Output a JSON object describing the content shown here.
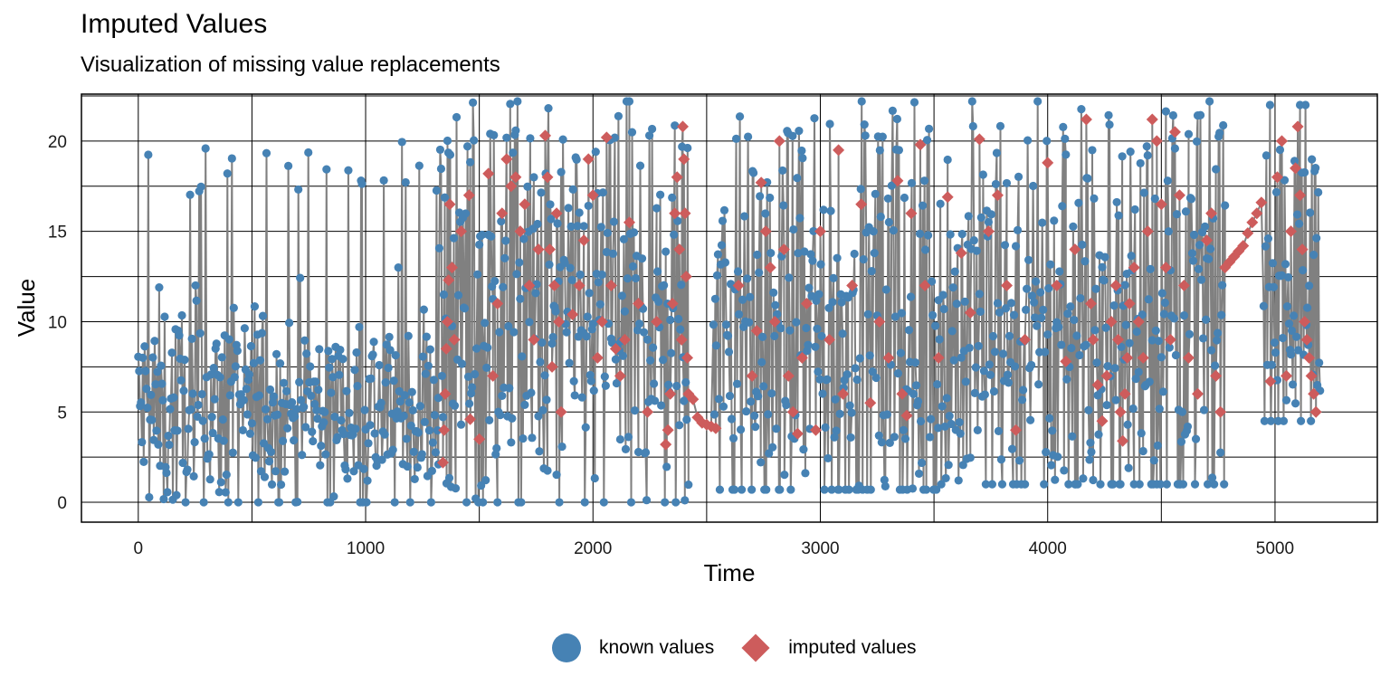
{
  "chart_data": {
    "type": "scatter",
    "title": "Imputed Values",
    "subtitle": "Visualization of missing value replacements",
    "xlabel": "Time",
    "ylabel": "Value",
    "xlim": [
      -250,
      5450
    ],
    "ylim": [
      -1.1,
      22.6
    ],
    "xticks": [
      0,
      1000,
      2000,
      3000,
      4000,
      5000
    ],
    "yticks": [
      0,
      5,
      10,
      15,
      20
    ],
    "grid": true,
    "legend_position": "bottom",
    "line_color": "#808080",
    "series": [
      {
        "name": "known values",
        "marker": "circle",
        "color": "#4682B4",
        "segments": [
          {
            "x_start": 0,
            "x_end": 1320,
            "min": 0.0,
            "max": 20.0,
            "mean": 5.0,
            "spread": 3.0
          },
          {
            "x_start": 1320,
            "x_end": 2420,
            "min": 0.0,
            "max": 22.2,
            "mean": 9.5,
            "spread": 6.0
          },
          {
            "x_start": 2530,
            "x_end": 3520,
            "min": 0.7,
            "max": 22.2,
            "mean": 8.5,
            "spread": 6.0
          },
          {
            "x_start": 3520,
            "x_end": 4780,
            "min": 1.0,
            "max": 22.2,
            "mean": 9.0,
            "spread": 6.0
          },
          {
            "x_start": 4950,
            "x_end": 5200,
            "min": 4.5,
            "max": 22.0,
            "mean": 12.0,
            "spread": 5.0
          }
        ]
      },
      {
        "name": "imputed values",
        "marker": "diamond",
        "color": "#CD5C5C",
        "points": [
          [
            1340,
            2.2
          ],
          [
            1345,
            4.0
          ],
          [
            1350,
            6.0
          ],
          [
            1355,
            8.5
          ],
          [
            1360,
            10.0
          ],
          [
            1365,
            12.3
          ],
          [
            1370,
            16.5
          ],
          [
            1380,
            13.0
          ],
          [
            1390,
            9.0
          ],
          [
            1420,
            15.0
          ],
          [
            1455,
            17.0
          ],
          [
            1460,
            4.6
          ],
          [
            1500,
            3.5
          ],
          [
            1540,
            18.2
          ],
          [
            1560,
            7.0
          ],
          [
            1580,
            11.0
          ],
          [
            1600,
            16.0
          ],
          [
            1620,
            19.0
          ],
          [
            1640,
            17.5
          ],
          [
            1660,
            18.0
          ],
          [
            1680,
            15.0
          ],
          [
            1700,
            16.5
          ],
          [
            1720,
            12.0
          ],
          [
            1740,
            9.0
          ],
          [
            1760,
            14.0
          ],
          [
            1790,
            20.3
          ],
          [
            1800,
            18.0
          ],
          [
            1810,
            14.0
          ],
          [
            1820,
            7.5
          ],
          [
            1830,
            12.0
          ],
          [
            1840,
            16.0
          ],
          [
            1850,
            10.0
          ],
          [
            1860,
            5.0
          ],
          [
            1910,
            10.4
          ],
          [
            1940,
            12.0
          ],
          [
            1960,
            14.5
          ],
          [
            1980,
            19.0
          ],
          [
            2000,
            17.0
          ],
          [
            2020,
            8.0
          ],
          [
            2040,
            10.0
          ],
          [
            2060,
            20.2
          ],
          [
            2080,
            12.0
          ],
          [
            2100,
            8.5
          ],
          [
            2120,
            7.0
          ],
          [
            2140,
            9.0
          ],
          [
            2160,
            15.5
          ],
          [
            2200,
            11.0
          ],
          [
            2240,
            5.0
          ],
          [
            2280,
            10.0
          ],
          [
            2320,
            3.2
          ],
          [
            2330,
            4.0
          ],
          [
            2340,
            6.0
          ],
          [
            2350,
            11.0
          ],
          [
            2360,
            16.0
          ],
          [
            2370,
            18.0
          ],
          [
            2380,
            14.0
          ],
          [
            2390,
            9.0
          ],
          [
            2395,
            20.8
          ],
          [
            2400,
            19.0
          ],
          [
            2405,
            16.0
          ],
          [
            2410,
            12.5
          ],
          [
            2415,
            8.0
          ],
          [
            2420,
            6.0
          ],
          [
            2440,
            5.7
          ],
          [
            2460,
            4.7
          ],
          [
            2480,
            4.4
          ],
          [
            2500,
            4.3
          ],
          [
            2520,
            4.2
          ],
          [
            2540,
            4.1
          ],
          [
            2640,
            12.0
          ],
          [
            2700,
            7.0
          ],
          [
            2720,
            9.5
          ],
          [
            2740,
            17.7
          ],
          [
            2760,
            15.0
          ],
          [
            2780,
            13.0
          ],
          [
            2800,
            10.0
          ],
          [
            2820,
            20.0
          ],
          [
            2840,
            14.0
          ],
          [
            2860,
            7.0
          ],
          [
            2880,
            5.0
          ],
          [
            2900,
            3.8
          ],
          [
            2920,
            8.0
          ],
          [
            2940,
            11.0
          ],
          [
            2980,
            4.0
          ],
          [
            3000,
            15.0
          ],
          [
            3040,
            9.0
          ],
          [
            3080,
            19.5
          ],
          [
            3100,
            6.0
          ],
          [
            3140,
            12.0
          ],
          [
            3180,
            16.5
          ],
          [
            3220,
            5.5
          ],
          [
            3260,
            10.0
          ],
          [
            3300,
            8.0
          ],
          [
            3340,
            17.8
          ],
          [
            3360,
            6.0
          ],
          [
            3380,
            4.8
          ],
          [
            3400,
            16.0
          ],
          [
            3440,
            19.8
          ],
          [
            3460,
            12.0
          ],
          [
            3520,
            8.0
          ],
          [
            3560,
            16.9
          ],
          [
            3620,
            13.8
          ],
          [
            3660,
            10.5
          ],
          [
            3700,
            20.1
          ],
          [
            3740,
            15.0
          ],
          [
            3780,
            17.0
          ],
          [
            3820,
            12.0
          ],
          [
            3860,
            4.0
          ],
          [
            3900,
            9.0
          ],
          [
            4000,
            18.8
          ],
          [
            4040,
            12.0
          ],
          [
            4080,
            7.8
          ],
          [
            4120,
            14.0
          ],
          [
            4170,
            21.2
          ],
          [
            4190,
            11.0
          ],
          [
            4200,
            9.0
          ],
          [
            4220,
            6.5
          ],
          [
            4240,
            4.5
          ],
          [
            4260,
            7.0
          ],
          [
            4280,
            10.0
          ],
          [
            4300,
            12.0
          ],
          [
            4310,
            9.0
          ],
          [
            4320,
            5.0
          ],
          [
            4330,
            3.4
          ],
          [
            4340,
            6.0
          ],
          [
            4350,
            8.0
          ],
          [
            4360,
            11.0
          ],
          [
            4380,
            13.0
          ],
          [
            4400,
            10.0
          ],
          [
            4420,
            8.0
          ],
          [
            4440,
            15.0
          ],
          [
            4460,
            21.2
          ],
          [
            4480,
            20.0
          ],
          [
            4500,
            16.5
          ],
          [
            4520,
            13.0
          ],
          [
            4540,
            9.0
          ],
          [
            4560,
            20.5
          ],
          [
            4580,
            17.0
          ],
          [
            4600,
            12.0
          ],
          [
            4620,
            8.0
          ],
          [
            4660,
            6.0
          ],
          [
            4700,
            14.5
          ],
          [
            4720,
            16.0
          ],
          [
            4740,
            7.0
          ],
          [
            4760,
            5.0
          ],
          [
            4780,
            13.0
          ],
          [
            4800,
            13.3
          ],
          [
            4820,
            13.6
          ],
          [
            4840,
            13.9
          ],
          [
            4860,
            14.2
          ],
          [
            4880,
            14.9
          ],
          [
            4900,
            15.5
          ],
          [
            4920,
            16.0
          ],
          [
            4940,
            16.6
          ],
          [
            4980,
            6.7
          ],
          [
            5010,
            18.0
          ],
          [
            5030,
            20.0
          ],
          [
            5050,
            7.0
          ],
          [
            5070,
            15.0
          ],
          [
            5090,
            18.5
          ],
          [
            5100,
            20.8
          ],
          [
            5110,
            17.0
          ],
          [
            5120,
            14.0
          ],
          [
            5130,
            10.0
          ],
          [
            5140,
            9.0
          ],
          [
            5150,
            8.0
          ],
          [
            5160,
            7.0
          ],
          [
            5170,
            6.0
          ],
          [
            5180,
            5.0
          ]
        ]
      }
    ]
  }
}
